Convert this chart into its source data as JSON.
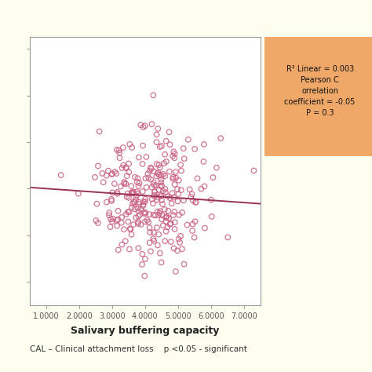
{
  "title": "",
  "xlabel": "Salivary buffering capacity",
  "ylabel": "",
  "xlim": [
    0.5,
    7.5
  ],
  "ylim": [
    1.0,
    12.5
  ],
  "xticks": [
    1.0,
    2.0,
    3.0,
    4.0,
    5.0,
    6.0,
    7.0
  ],
  "xtick_labels": [
    "1.0000",
    "2.0000",
    "3.0000",
    "4.0000",
    "5.0000",
    "6.0000",
    "7.0000"
  ],
  "yticks": [
    2,
    4,
    6,
    8,
    10,
    12
  ],
  "scatter_color": "#cc6688",
  "line_color": "#993355",
  "background": "#fdfdf0",
  "plot_bg": "#ffffff",
  "annotation_bg": "#f0a868",
  "footer_text": "CAL – Clinical attachment loss    p <0.05 - significant",
  "regression_x0": 0.5,
  "regression_x1": 7.5,
  "regression_y0": 6.05,
  "regression_y1": 5.35,
  "seed": 42,
  "n_points": 280,
  "scatter_size": 22,
  "scatter_lw": 0.9
}
